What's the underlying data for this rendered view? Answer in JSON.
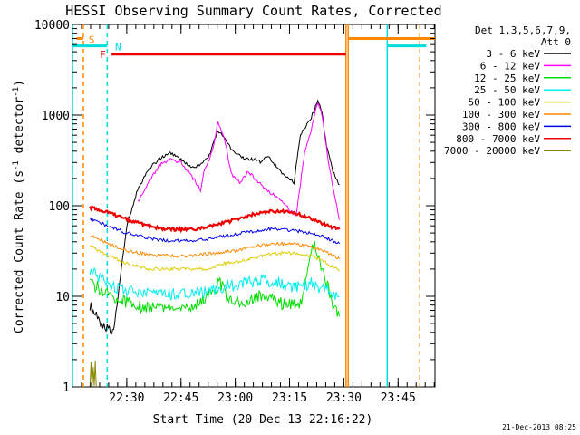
{
  "chart_data": {
    "type": "line",
    "title": "HESSI Observing Summary Count Rates, Corrected",
    "xlabel": "Start Time (20-Dec-13 22:16:22)",
    "ylabel": "Corrected Count Rate (s⁻¹ detector⁻¹)",
    "ylabel_main": "Corrected Count Rate (s",
    "ylabel_sup1": "-1",
    "ylabel_mid": " detector",
    "ylabel_sup2": "-1",
    "ylabel_end": ")",
    "timestamp": "21-Dec-2013 08:25",
    "yscale": "log",
    "ylim": [
      1,
      10000
    ],
    "xlim": [
      22.25,
      23.92
    ],
    "x_ticks": [
      {
        "value": 22.5,
        "label": "22:30"
      },
      {
        "value": 22.75,
        "label": "22:45"
      },
      {
        "value": 23.0,
        "label": "23:00"
      },
      {
        "value": 23.25,
        "label": "23:15"
      },
      {
        "value": 23.5,
        "label": "23:30"
      },
      {
        "value": 23.75,
        "label": "23:45"
      }
    ],
    "y_ticks": [
      {
        "value": 1,
        "label": "1"
      },
      {
        "value": 10,
        "label": "10"
      },
      {
        "value": 100,
        "label": "100"
      },
      {
        "value": 1000,
        "label": "1000"
      },
      {
        "value": 10000,
        "label": "10000"
      }
    ],
    "legend": {
      "placement": "top-right",
      "header": [
        "Det 1,3,5,6,7,9,",
        "Att 0"
      ]
    },
    "series": [
      {
        "name": "3 - 6 keV",
        "color": "#000000",
        "x": [
          22.33,
          22.36,
          22.38,
          22.42,
          22.44,
          22.5,
          22.55,
          22.6,
          22.65,
          22.7,
          22.75,
          22.8,
          22.85,
          22.88,
          22.92,
          22.95,
          22.98,
          23.0,
          23.05,
          23.1,
          23.12,
          23.15,
          23.18,
          23.2,
          23.23,
          23.27,
          23.3,
          23.35,
          23.38,
          23.4,
          23.42,
          23.45,
          23.48
        ],
        "y": [
          8,
          6,
          5,
          4.5,
          4.2,
          60,
          150,
          250,
          330,
          380,
          320,
          260,
          290,
          360,
          680,
          560,
          420,
          370,
          330,
          320,
          300,
          360,
          290,
          250,
          215,
          180,
          600,
          950,
          1450,
          1050,
          450,
          240,
          170
        ]
      },
      {
        "name": "6 - 12 keV",
        "color": "#ff00ff",
        "x": [
          22.55,
          22.6,
          22.65,
          22.7,
          22.75,
          22.8,
          22.84,
          22.86,
          22.88,
          22.9,
          22.92,
          22.95,
          22.98,
          23.02,
          23.06,
          23.1,
          23.14,
          23.18,
          23.22,
          23.25,
          23.28,
          23.32,
          23.35,
          23.38,
          23.4,
          23.43,
          23.46,
          23.48
        ],
        "y": [
          110,
          180,
          280,
          320,
          300,
          210,
          150,
          260,
          320,
          450,
          820,
          560,
          230,
          180,
          240,
          190,
          150,
          130,
          110,
          90,
          75,
          400,
          700,
          1400,
          1000,
          300,
          120,
          70
        ]
      },
      {
        "name": "12 - 25 keV",
        "color": "#00dd00",
        "x": [
          22.33,
          22.38,
          22.43,
          22.48,
          22.53,
          22.6,
          22.65,
          22.7,
          22.75,
          22.8,
          22.85,
          22.9,
          22.93,
          22.96,
          23.0,
          23.05,
          23.1,
          23.15,
          23.2,
          23.25,
          23.3,
          23.33,
          23.36,
          23.4,
          23.45,
          23.48
        ],
        "y": [
          14,
          12,
          10,
          9,
          8,
          7.5,
          7.5,
          7.5,
          7.3,
          7.5,
          9,
          12,
          14,
          10,
          8.5,
          9,
          10,
          10,
          8.5,
          8,
          8,
          20,
          38,
          20,
          8,
          6
        ]
      },
      {
        "name": "25 - 50 keV",
        "color": "#00eeee",
        "x": [
          22.33,
          22.38,
          22.43,
          22.48,
          22.53,
          22.6,
          22.65,
          22.7,
          22.75,
          22.8,
          22.85,
          22.9,
          22.95,
          23.0,
          23.05,
          23.1,
          23.15,
          23.2,
          23.25,
          23.3,
          23.35,
          23.4,
          23.45,
          23.48
        ],
        "y": [
          19,
          16,
          13,
          12,
          11,
          10.5,
          10.5,
          10.5,
          10.5,
          11,
          11,
          12,
          13,
          13,
          14,
          15,
          15,
          14,
          13,
          13,
          14,
          12,
          11,
          10
        ]
      },
      {
        "name": "50 - 100 keV",
        "color": "#ddcc00",
        "x": [
          22.33,
          22.38,
          22.43,
          22.48,
          22.53,
          22.6,
          22.65,
          22.7,
          22.75,
          22.8,
          22.85,
          22.9,
          22.95,
          23.0,
          23.05,
          23.1,
          23.15,
          23.2,
          23.25,
          23.3,
          23.35,
          23.4,
          23.45,
          23.48
        ],
        "y": [
          36,
          31,
          27,
          24,
          22,
          20,
          20,
          20,
          20,
          20,
          20,
          21,
          23,
          24,
          25,
          27,
          29,
          30,
          30,
          29,
          28,
          25,
          21,
          19
        ]
      },
      {
        "name": "100 - 300 keV",
        "color": "#ff8800",
        "x": [
          22.33,
          22.38,
          22.43,
          22.48,
          22.53,
          22.6,
          22.65,
          22.7,
          22.75,
          22.8,
          22.85,
          22.9,
          22.95,
          23.0,
          23.05,
          23.1,
          23.15,
          23.2,
          23.25,
          23.3,
          23.35,
          23.4,
          23.45,
          23.48
        ],
        "y": [
          47,
          42,
          37,
          33,
          31,
          29,
          28,
          28,
          28,
          28,
          29,
          30,
          31,
          32,
          34,
          36,
          37,
          38,
          38,
          37,
          35,
          32,
          28,
          26
        ]
      },
      {
        "name": "300 - 800 keV",
        "color": "#0000ee",
        "x": [
          22.33,
          22.38,
          22.43,
          22.48,
          22.53,
          22.6,
          22.65,
          22.7,
          22.75,
          22.8,
          22.85,
          22.9,
          22.95,
          23.0,
          23.05,
          23.1,
          23.15,
          23.2,
          23.25,
          23.3,
          23.35,
          23.4,
          23.45,
          23.48
        ],
        "y": [
          73,
          65,
          58,
          52,
          48,
          44,
          42,
          41,
          41,
          41,
          42,
          44,
          46,
          48,
          51,
          53,
          55,
          55,
          54,
          52,
          50,
          46,
          41,
          38
        ]
      },
      {
        "name": "800 - 7000 keV",
        "color": "#ee0000",
        "x": [
          22.33,
          22.38,
          22.43,
          22.48,
          22.53,
          22.6,
          22.65,
          22.7,
          22.75,
          22.8,
          22.85,
          22.9,
          22.95,
          23.0,
          23.05,
          23.1,
          23.15,
          23.2,
          23.25,
          23.3,
          23.35,
          23.4,
          23.45,
          23.48
        ],
        "y": [
          96,
          90,
          82,
          74,
          67,
          60,
          57,
          55,
          55,
          55,
          57,
          60,
          65,
          70,
          76,
          82,
          86,
          87,
          85,
          80,
          72,
          64,
          57,
          55
        ]
      },
      {
        "name": "7000 - 20000 keV",
        "color": "#888800",
        "x": [
          22.33,
          22.335,
          22.34,
          22.345,
          22.35,
          22.355,
          22.36
        ],
        "y": [
          1,
          1.8,
          1,
          1.7,
          1,
          1.9,
          1
        ]
      }
    ],
    "flags": [
      {
        "label": "S",
        "color": "#ff8800",
        "y": 7000,
        "x_start": 22.27,
        "x_end": 22.3
      },
      {
        "label": "N",
        "color": "#00dddd",
        "y": 5800,
        "x_start": 22.25,
        "x_end": 22.41
      },
      {
        "label": "F",
        "color": "#ee0000",
        "y": 4700,
        "x_start": 22.43,
        "x_end": 23.51
      },
      {
        "label": "",
        "color": "#ff8800",
        "y": 7000,
        "x_start": 23.52,
        "x_end": 23.92
      },
      {
        "label": "",
        "color": "#00dddd",
        "y": 5800,
        "x_start": 23.7,
        "x_end": 23.88
      }
    ],
    "vlines": [
      {
        "x": 22.25,
        "color": "#00dddd",
        "style": "solid"
      },
      {
        "x": 22.3,
        "color": "#ff8800",
        "style": "dashed"
      },
      {
        "x": 22.41,
        "color": "#00dddd",
        "style": "dashed"
      },
      {
        "x": 23.51,
        "color": "#ff8800",
        "style": "solid"
      },
      {
        "x": 23.52,
        "color": "#ff8800",
        "style": "solid"
      },
      {
        "x": 23.7,
        "color": "#00dddd",
        "style": "solid"
      },
      {
        "x": 23.85,
        "color": "#ff8800",
        "style": "dashed"
      }
    ]
  }
}
